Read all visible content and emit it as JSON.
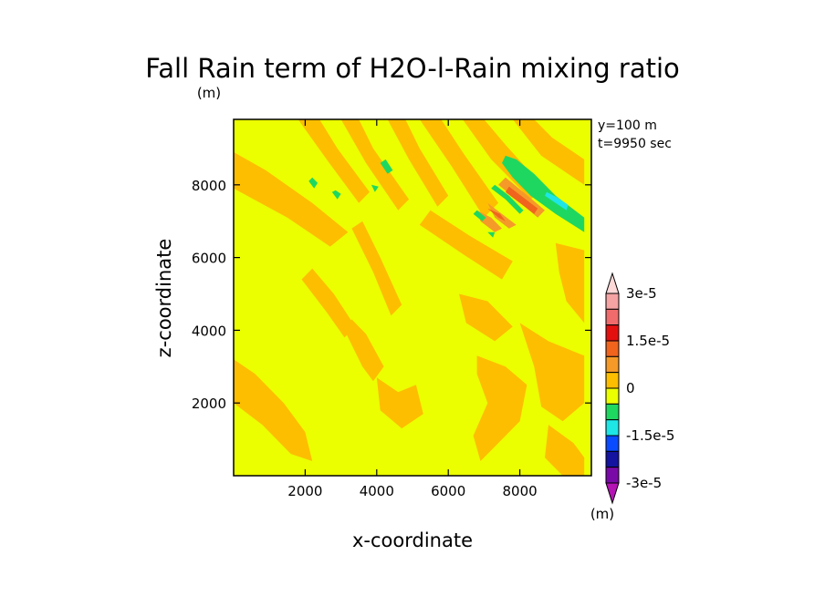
{
  "chart_data": {
    "type": "heatmap",
    "title": "Fall Rain term of H2O-l-Rain mixing ratio",
    "units": "(m)",
    "xlabel": "x-coordinate",
    "ylabel": "z-coordinate",
    "annotations": [
      "y=100 m",
      "t=9950 sec"
    ],
    "xlim": [
      0,
      10000
    ],
    "ylim": [
      0,
      9800
    ],
    "x_ticks": [
      2000,
      4000,
      6000,
      8000
    ],
    "y_ticks": [
      2000,
      4000,
      6000,
      8000
    ],
    "colorbar": {
      "labels": [
        "3e-5",
        "1.5e-5",
        "0",
        "-1.5e-5",
        "-3e-5"
      ],
      "units": "(m)",
      "levels": [
        {
          "from": 3e-05,
          "to": 3.5e-05,
          "color": "#ffd8d8"
        },
        {
          "from": 2.5e-05,
          "to": 3e-05,
          "color": "#f5a3a3"
        },
        {
          "from": 2e-05,
          "to": 2.5e-05,
          "color": "#f06b6b"
        },
        {
          "from": 1.5e-05,
          "to": 2e-05,
          "color": "#e31010"
        },
        {
          "from": 1e-05,
          "to": 1.5e-05,
          "color": "#f0641e"
        },
        {
          "from": 5e-06,
          "to": 1e-05,
          "color": "#f59a28"
        },
        {
          "from": 0,
          "to": 5e-06,
          "color": "#fdbe00"
        },
        {
          "from": -5e-06,
          "to": 0,
          "color": "#ecff00"
        },
        {
          "from": -1e-05,
          "to": -5e-06,
          "color": "#1ed760"
        },
        {
          "from": -1.5e-05,
          "to": -1e-05,
          "color": "#1ee6e6"
        },
        {
          "from": -2e-05,
          "to": -1.5e-05,
          "color": "#0a4bff"
        },
        {
          "from": -2.5e-05,
          "to": -2e-05,
          "color": "#1414a0"
        },
        {
          "from": -3e-05,
          "to": -2.5e-05,
          "color": "#7a0aa8"
        },
        {
          "from": -3.5e-05,
          "to": -3e-05,
          "color": "#b414b4"
        }
      ]
    },
    "field": {
      "background_color": "#ecff00",
      "regions": [
        {
          "level": "positive_small",
          "color": "#fdbe00",
          "points": [
            [
              0,
              7900
            ],
            [
              1500,
              7100
            ],
            [
              2700,
              6300
            ],
            [
              3200,
              6700
            ],
            [
              2200,
              7500
            ],
            [
              900,
              8400
            ],
            [
              0,
              8900
            ]
          ]
        },
        {
          "level": "positive_small",
          "color": "#fdbe00",
          "points": [
            [
              1800,
              9800
            ],
            [
              2600,
              8700
            ],
            [
              3500,
              7500
            ],
            [
              3800,
              7800
            ],
            [
              2900,
              9000
            ],
            [
              2400,
              9800
            ]
          ]
        },
        {
          "level": "positive_small",
          "color": "#fdbe00",
          "points": [
            [
              3000,
              9800
            ],
            [
              3700,
              8600
            ],
            [
              4600,
              7300
            ],
            [
              4900,
              7600
            ],
            [
              3900,
              9000
            ],
            [
              3500,
              9800
            ]
          ]
        },
        {
          "level": "positive_small",
          "color": "#fdbe00",
          "points": [
            [
              4300,
              9800
            ],
            [
              4900,
              8700
            ],
            [
              5700,
              7400
            ],
            [
              6000,
              7700
            ],
            [
              5200,
              9000
            ],
            [
              4800,
              9800
            ]
          ]
        },
        {
          "level": "positive_small",
          "color": "#fdbe00",
          "points": [
            [
              5200,
              9800
            ],
            [
              6100,
              8500
            ],
            [
              7000,
              7100
            ],
            [
              7400,
              7500
            ],
            [
              6400,
              8900
            ],
            [
              5800,
              9800
            ]
          ]
        },
        {
          "level": "positive_small",
          "color": "#fdbe00",
          "points": [
            [
              6400,
              9800
            ],
            [
              7200,
              8700
            ],
            [
              8300,
              7600
            ],
            [
              8700,
              7900
            ],
            [
              7600,
              9100
            ],
            [
              7000,
              9800
            ]
          ]
        },
        {
          "level": "positive_small",
          "color": "#fdbe00",
          "points": [
            [
              7800,
              9800
            ],
            [
              8600,
              8800
            ],
            [
              9800,
              8000
            ],
            [
              9800,
              8700
            ],
            [
              8900,
              9300
            ],
            [
              8400,
              9800
            ]
          ]
        },
        {
          "level": "positive_small",
          "color": "#fdbe00",
          "points": [
            [
              5200,
              6900
            ],
            [
              6400,
              6100
            ],
            [
              7500,
              5400
            ],
            [
              7800,
              5900
            ],
            [
              6600,
              6600
            ],
            [
              5500,
              7300
            ]
          ]
        },
        {
          "level": "positive_small",
          "color": "#fdbe00",
          "points": [
            [
              3300,
              6800
            ],
            [
              3900,
              5600
            ],
            [
              4400,
              4400
            ],
            [
              4700,
              4700
            ],
            [
              4100,
              6000
            ],
            [
              3600,
              7000
            ]
          ]
        },
        {
          "level": "positive_small",
          "color": "#fdbe00",
          "points": [
            [
              1900,
              5400
            ],
            [
              2600,
              4500
            ],
            [
              3100,
              3800
            ],
            [
              3400,
              4100
            ],
            [
              2800,
              5000
            ],
            [
              2200,
              5700
            ]
          ]
        },
        {
          "level": "positive_small",
          "color": "#fdbe00",
          "points": [
            [
              3100,
              4000
            ],
            [
              3600,
              3000
            ],
            [
              3900,
              2600
            ],
            [
              4200,
              3000
            ],
            [
              3700,
              3900
            ],
            [
              3300,
              4300
            ]
          ]
        },
        {
          "level": "positive_small",
          "color": "#fdbe00",
          "points": [
            [
              4000,
              2700
            ],
            [
              4600,
              2300
            ],
            [
              5100,
              2500
            ],
            [
              5300,
              1700
            ],
            [
              4700,
              1300
            ],
            [
              4100,
              1800
            ]
          ]
        },
        {
          "level": "positive_small",
          "color": "#fdbe00",
          "points": [
            [
              6300,
              5000
            ],
            [
              7100,
              4800
            ],
            [
              7800,
              4100
            ],
            [
              7300,
              3700
            ],
            [
              6500,
              4200
            ]
          ]
        },
        {
          "level": "positive_small",
          "color": "#fdbe00",
          "points": [
            [
              6800,
              3300
            ],
            [
              7600,
              3000
            ],
            [
              8200,
              2500
            ],
            [
              8000,
              1500
            ],
            [
              7300,
              800
            ],
            [
              6900,
              400
            ],
            [
              6700,
              1100
            ],
            [
              7100,
              2000
            ],
            [
              6800,
              2800
            ]
          ]
        },
        {
          "level": "positive_small",
          "color": "#fdbe00",
          "points": [
            [
              8000,
              4200
            ],
            [
              8800,
              3700
            ],
            [
              9800,
              3300
            ],
            [
              9800,
              2000
            ],
            [
              9200,
              1500
            ],
            [
              8600,
              1900
            ],
            [
              8400,
              3000
            ]
          ]
        },
        {
          "level": "positive_small",
          "color": "#fdbe00",
          "points": [
            [
              9000,
              6400
            ],
            [
              9800,
              6200
            ],
            [
              9800,
              4200
            ],
            [
              9300,
              4800
            ],
            [
              9100,
              5600
            ]
          ]
        },
        {
          "level": "positive_small",
          "color": "#fdbe00",
          "points": [
            [
              0,
              3200
            ],
            [
              600,
              2800
            ],
            [
              1400,
              2000
            ],
            [
              2000,
              1200
            ],
            [
              2200,
              400
            ],
            [
              1600,
              600
            ],
            [
              800,
              1400
            ],
            [
              0,
              2000
            ]
          ]
        },
        {
          "level": "positive_small",
          "color": "#fdbe00",
          "points": [
            [
              8800,
              1400
            ],
            [
              9500,
              900
            ],
            [
              9800,
              500
            ],
            [
              9800,
              0
            ],
            [
              9200,
              0
            ],
            [
              8700,
              500
            ]
          ]
        },
        {
          "level": "positive_mid",
          "color": "#f59a28",
          "points": [
            [
              6800,
              7300
            ],
            [
              7200,
              7100
            ],
            [
              7500,
              6800
            ],
            [
              7300,
              6700
            ],
            [
              6900,
              7000
            ]
          ]
        },
        {
          "level": "positive_mid",
          "color": "#f59a28",
          "points": [
            [
              7100,
              7500
            ],
            [
              7500,
              7200
            ],
            [
              7900,
              6900
            ],
            [
              7700,
              6800
            ],
            [
              7300,
              7100
            ]
          ]
        },
        {
          "level": "positive_mid",
          "color": "#f59a28",
          "points": [
            [
              7400,
              8000
            ],
            [
              7900,
              7600
            ],
            [
              8500,
              7100
            ],
            [
              8700,
              7300
            ],
            [
              8100,
              7800
            ],
            [
              7600,
              8200
            ]
          ]
        },
        {
          "level": "positive_large",
          "color": "#f0641e",
          "points": [
            [
              7600,
              7800
            ],
            [
              8000,
              7500
            ],
            [
              8400,
              7200
            ],
            [
              8500,
              7350
            ],
            [
              8100,
              7650
            ],
            [
              7700,
              7950
            ]
          ]
        },
        {
          "level": "positive_large",
          "color": "#f0641e",
          "points": [
            [
              7100,
              7350
            ],
            [
              7400,
              7100
            ],
            [
              7600,
              7000
            ],
            [
              7450,
              7200
            ]
          ]
        },
        {
          "level": "negative_small",
          "color": "#1ed760",
          "points": [
            [
              7600,
              8800
            ],
            [
              7900,
              8700
            ],
            [
              8400,
              8300
            ],
            [
              9000,
              7700
            ],
            [
              9800,
              7100
            ],
            [
              9800,
              6700
            ],
            [
              9000,
              7200
            ],
            [
              8300,
              7700
            ],
            [
              7800,
              8200
            ],
            [
              7500,
              8600
            ]
          ]
        },
        {
          "level": "negative_small",
          "color": "#1ed760",
          "points": [
            [
              7200,
              7900
            ],
            [
              7600,
              7600
            ],
            [
              8000,
              7200
            ],
            [
              8100,
              7300
            ],
            [
              7700,
              7700
            ],
            [
              7300,
              8000
            ]
          ]
        },
        {
          "level": "negative_small",
          "color": "#1ed760",
          "points": [
            [
              6700,
              7200
            ],
            [
              6950,
              7000
            ],
            [
              7050,
              7100
            ],
            [
              6800,
              7300
            ]
          ]
        },
        {
          "level": "negative_small",
          "color": "#1ed760",
          "points": [
            [
              4100,
              8600
            ],
            [
              4300,
              8300
            ],
            [
              4450,
              8400
            ],
            [
              4250,
              8700
            ]
          ]
        },
        {
          "level": "negative_small",
          "color": "#1ed760",
          "points": [
            [
              2100,
              8100
            ],
            [
              2250,
              7900
            ],
            [
              2350,
              8050
            ],
            [
              2200,
              8200
            ]
          ]
        },
        {
          "level": "negative_small",
          "color": "#1ed760",
          "points": [
            [
              2750,
              7800
            ],
            [
              2900,
              7600
            ],
            [
              3000,
              7750
            ],
            [
              2850,
              7850
            ]
          ]
        },
        {
          "level": "negative_small",
          "color": "#1ed760",
          "points": [
            [
              3850,
              8000
            ],
            [
              3950,
              7800
            ],
            [
              4050,
              7950
            ]
          ]
        },
        {
          "level": "negative_small",
          "color": "#1ed760",
          "points": [
            [
              7100,
              6700
            ],
            [
              7250,
              6550
            ],
            [
              7300,
              6700
            ]
          ]
        },
        {
          "level": "negative_mid",
          "color": "#1ee6e6",
          "points": [
            [
              8700,
              7700
            ],
            [
              9000,
              7500
            ],
            [
              9300,
              7300
            ],
            [
              9350,
              7450
            ],
            [
              9050,
              7650
            ],
            [
              8750,
              7800
            ]
          ]
        }
      ]
    }
  }
}
